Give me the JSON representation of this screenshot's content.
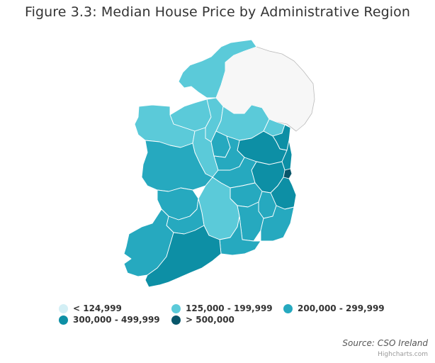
{
  "title": "Figure 3.3: Median House Price by Administrative Region",
  "colors": {
    "band_lt_124999": "#d3eff5",
    "band_125_199": "#5bcad9",
    "band_200_299": "#26a9bf",
    "band_300_499": "#0d8fa5",
    "band_gt_500": "#08566a",
    "no_data": "#f7f7f7",
    "border": "#ffffff",
    "no_data_border": "#bbbbbb"
  },
  "legend": [
    {
      "label": "< 124,999",
      "color": "#d3eff5"
    },
    {
      "label": "125,000 - 199,999",
      "color": "#5bcad9"
    },
    {
      "label": "200,000 - 299,999",
      "color": "#26a9bf"
    },
    {
      "label": "300,000 - 499,999",
      "color": "#0d8fa5"
    },
    {
      "label": "> 500,000",
      "color": "#08566a"
    }
  ],
  "source": "Source: CSO Ireland",
  "credit": "Highcharts.com"
}
